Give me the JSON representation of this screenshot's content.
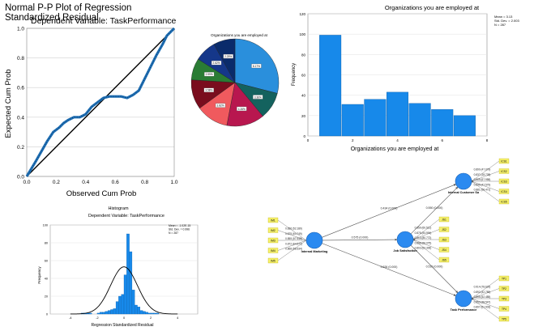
{
  "chart_data": [
    {
      "type": "line",
      "title": "Normal P-P Plot of Regression Standardized Residual",
      "subtitle": "Dependent Variable: TaskPerformance",
      "xlabel": "Observed Cum Prob",
      "ylabel": "Expected Cum Prob",
      "xlim": [
        0,
        1
      ],
      "ylim": [
        0,
        1
      ],
      "xticks": [
        "0.0",
        "0.2",
        "0.4",
        "0.6",
        "0.8",
        "1.0"
      ],
      "yticks": [
        "0.0",
        "0.2",
        "0.4",
        "0.6",
        "0.8",
        "1.0"
      ],
      "grid": true,
      "series": [
        {
          "x": [
            0,
            0.03,
            0.06,
            0.1,
            0.14,
            0.18,
            0.22,
            0.25,
            0.28,
            0.32,
            0.36,
            0.4,
            0.44,
            0.48,
            0.52,
            0.56,
            0.6,
            0.64,
            0.68,
            0.72,
            0.76,
            0.8,
            0.84,
            0.88,
            0.92,
            0.95,
            0.98,
            1.0
          ],
          "y": [
            0,
            0.05,
            0.1,
            0.17,
            0.24,
            0.3,
            0.33,
            0.36,
            0.38,
            0.4,
            0.4,
            0.42,
            0.47,
            0.5,
            0.53,
            0.54,
            0.54,
            0.54,
            0.53,
            0.55,
            0.58,
            0.66,
            0.74,
            0.82,
            0.89,
            0.95,
            0.98,
            1.0
          ]
        }
      ],
      "reference_line": [
        [
          0,
          0
        ],
        [
          1,
          1
        ]
      ],
      "colors": {
        "points": "#1f6fb4",
        "reference": "#000000"
      }
    },
    {
      "type": "pie",
      "title": "Organizations you are employed at",
      "values": [
        29,
        10,
        14,
        12,
        11,
        8,
        8,
        8
      ],
      "slice_labels": [
        "8.17%",
        "3.36%",
        "4.26%",
        "3.82%",
        "3.58%",
        "2.99%",
        "2.62%",
        "2.25%"
      ],
      "colors": [
        "#2a8fdc",
        "#14625e",
        "#b8174f",
        "#f05a5e",
        "#7a0d1e",
        "#2a7c34",
        "#15378a",
        "#0a2b6b"
      ]
    },
    {
      "type": "bar",
      "title": "Organizations you are employed at",
      "xlabel": "Organizations you are employed at",
      "ylabel": "Frequency",
      "x": [
        1,
        2,
        3,
        4,
        5,
        6,
        7
      ],
      "values": [
        99,
        31,
        36,
        43,
        32,
        26,
        20
      ],
      "xlim": [
        0,
        8
      ],
      "ylim": [
        0,
        120
      ],
      "xticks": [
        "0",
        "2",
        "4",
        "6",
        "8"
      ],
      "yticks": [
        "0",
        "20",
        "40",
        "60",
        "80",
        "100",
        "120"
      ],
      "stats": [
        "Mean = 3.13",
        "Std. Dev. = 2.003",
        "N = 287"
      ],
      "colors": {
        "bar": "#1789ea"
      }
    },
    {
      "type": "bar",
      "title": "Histogram",
      "subtitle": "Dependent Variable: TaskPerformance",
      "xlabel": "Regression Standardized Residual",
      "ylabel": "Frequency",
      "x": [
        -3.1,
        -2.9,
        -2.7,
        -2.5,
        -1.9,
        -1.7,
        -1.5,
        -1.3,
        -1.1,
        -0.9,
        -0.7,
        -0.5,
        -0.3,
        -0.1,
        0.1,
        0.3,
        0.5,
        0.7,
        0.9,
        1.1,
        1.3,
        1.5,
        1.7,
        1.9,
        2.1,
        2.3,
        2.5
      ],
      "values": [
        1,
        1,
        1,
        1,
        1,
        2,
        2,
        3,
        4,
        5,
        6,
        14,
        20,
        22,
        44,
        90,
        70,
        27,
        10,
        8,
        4,
        3,
        2,
        1,
        1,
        1,
        1
      ],
      "xlim": [
        -5.5,
        5.5
      ],
      "ylim": [
        0,
        100
      ],
      "xticks": [
        "-4",
        "-2",
        "0",
        "2",
        "4"
      ],
      "yticks": [
        "0",
        "20",
        "40",
        "60",
        "80",
        "100"
      ],
      "stats": [
        "Mean = -1.02E-15",
        "Std. Dev. = 0.996",
        "N = 287"
      ],
      "normal_curve": {
        "mean": 0,
        "sd": 1,
        "peak": 53
      },
      "colors": {
        "bar": "#1789ea",
        "curve": "#000000"
      }
    }
  ],
  "model": {
    "node_color": "#2b8af0",
    "indicator_color": "#f5f06a",
    "nodes": [
      {
        "id": "im",
        "label": "Internal Marketing"
      },
      {
        "id": "js",
        "label": "Job Satisfaction"
      },
      {
        "id": "ics",
        "label": "Internal Customer Sa"
      },
      {
        "id": "tp",
        "label": "Task Performance"
      }
    ],
    "paths": [
      {
        "from": "im",
        "to": "ics",
        "label": "0.434 (0.000)"
      },
      {
        "from": "im",
        "to": "js",
        "label": "0.575 (0.000)"
      },
      {
        "from": "im",
        "to": "tp",
        "label": "0.526 (0.000)"
      },
      {
        "from": "js",
        "to": "ics",
        "label": "0.550 (0.000)"
      },
      {
        "from": "js",
        "to": "tp",
        "label": "0.510 (0.000)"
      }
    ],
    "indicator_groups": [
      {
        "node": "im",
        "side": "left",
        "labels": [
          "IM1",
          "IM2",
          "IM3",
          "IM4",
          "IM5"
        ],
        "loadings": [
          "0.836 (52.189)",
          "0.875 (64.749)",
          "0.855 (57.548)",
          "0.872 (64.572)",
          "0.868 (58.534)"
        ]
      },
      {
        "node": "js",
        "side": "right",
        "labels": [
          "JS1",
          "JS2",
          "JS3",
          "JS4",
          "JS5"
        ],
        "loadings": [
          "0.859 (60.512)",
          "0.878 (54.994)",
          "0.914 (80.772)",
          "0.888 (66.075)",
          "0.803 (62.306)"
        ]
      },
      {
        "node": "ics",
        "side": "right",
        "labels": [
          "ICS1",
          "ICS2",
          "ICS3",
          "ICS4",
          "ICS5"
        ],
        "loadings": [
          "0.890 (47.079)",
          "0.837 (18.728)",
          "0.909 (67.958)",
          "0.849 (47.579)",
          "0.881 (58.471)"
        ]
      },
      {
        "node": "tp",
        "side": "right",
        "labels": [
          "TP1",
          "TP2",
          "TP3",
          "TP4",
          "TP5"
        ],
        "loadings": [
          "0.914 (78.629)",
          "0.892 (42.789)",
          "0.895 (52.485)",
          "0.853 (38.547)",
          "0.897 (61.903)"
        ]
      }
    ]
  }
}
